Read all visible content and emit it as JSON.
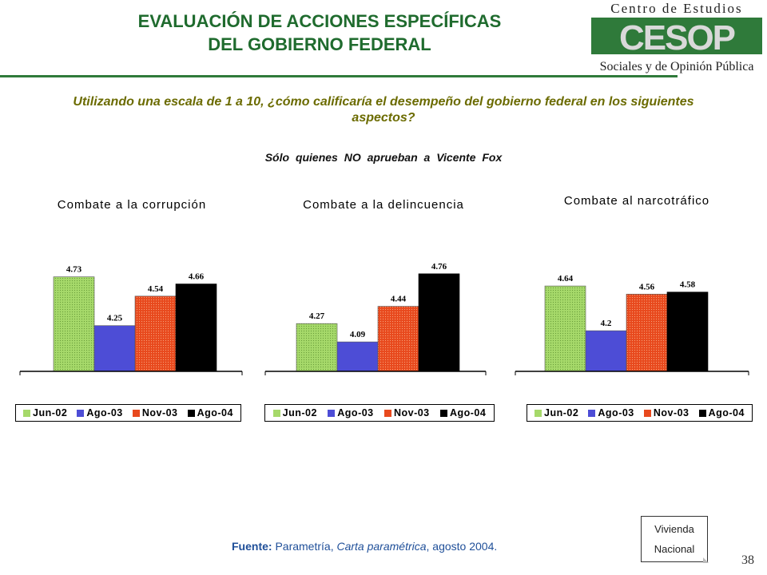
{
  "header": {
    "title_line1": "EVALUACIÓN DE ACCIONES ESPECÍFICAS",
    "title_line2": "DEL GOBIERNO FEDERAL",
    "logo_top": "Centro de Estudios",
    "logo_mark": "CESOP",
    "logo_bottom": "Sociales y de Opinión Pública"
  },
  "question": "Utilizando una escala de 1 a 10, ¿cómo calificaría el desempeño del gobierno federal en los siguientes aspectos?",
  "subtitle": "Sólo quienes NO aprueban a Vicente Fox",
  "colors": {
    "Jun-02": "#a6d96a",
    "Ago-03": "#4d4dd6",
    "Nov-03": "#e8491d",
    "Ago-04": "#000000",
    "title_green": "#1f6b2e",
    "question_olive": "#6b6b00",
    "source_blue": "#1f4f99"
  },
  "chart_data": [
    {
      "type": "bar",
      "title": "Combate a la corrupción",
      "categories": [
        "Jun-02",
        "Ago-03",
        "Nov-03",
        "Ago-04"
      ],
      "values": [
        4.73,
        4.25,
        4.54,
        4.66
      ],
      "value_labels": [
        "4.73",
        "4.25",
        "4.54",
        "4.66"
      ],
      "legend": [
        "Jun-02",
        "Ago-03",
        "Nov-03",
        "Ago-04"
      ],
      "ylim": [
        3.8,
        4.9
      ],
      "grid": false
    },
    {
      "type": "bar",
      "title": "Combate a la delincuencia",
      "categories": [
        "Jun-02",
        "Ago-03",
        "Nov-03",
        "Ago-04"
      ],
      "values": [
        4.27,
        4.09,
        4.44,
        4.76
      ],
      "value_labels": [
        "4.27",
        "4.09",
        "4.44",
        "4.76"
      ],
      "legend": [
        "Jun-02",
        "Ago-03",
        "Nov-03",
        "Ago-04"
      ],
      "ylim": [
        3.8,
        4.9
      ],
      "grid": false
    },
    {
      "type": "bar",
      "title": "Combate al narcotráfico",
      "categories": [
        "Jun-02",
        "Ago-03",
        "Nov-03",
        "Ago-04"
      ],
      "values": [
        4.64,
        4.2,
        4.56,
        4.58
      ],
      "value_labels": [
        "4.64",
        "4.2",
        "4.56",
        "4.58"
      ],
      "legend": [
        "Jun-02",
        "Ago-03",
        "Nov-03",
        "Ago-04"
      ],
      "ylim": [
        3.8,
        4.9
      ],
      "grid": false
    }
  ],
  "footer": {
    "source_label": "Fuente:",
    "source_org": " Parametría, ",
    "source_pub": "Carta paramétrica",
    "source_date": ", agosto 2004.",
    "note_line1": "Vivienda",
    "note_line2": "Nacional",
    "page_number": "38"
  }
}
